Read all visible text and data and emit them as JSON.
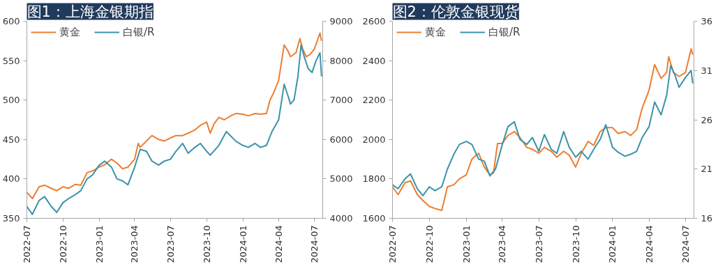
{
  "chart_data": [
    {
      "type": "line",
      "title": "图1：上海金银期指",
      "legend": "top left",
      "grid": false,
      "xlim": [
        "2022-07-01",
        "2024-07-22"
      ],
      "xticks": [
        "2022-07",
        "2022-10",
        "2023-01",
        "2023-04",
        "2023-07",
        "2023-10",
        "2024-01",
        "2024-04",
        "2024-07"
      ],
      "ylim": [
        350,
        600
      ],
      "yticks": [
        350,
        400,
        450,
        500,
        550,
        600
      ],
      "y2lim": [
        4000,
        9000
      ],
      "y2ticks": [
        4000,
        5000,
        6000,
        7000,
        8000,
        9000
      ],
      "series": [
        {
          "name": "黄金",
          "color": "#ed7d31",
          "x": [
            "2022-07-01",
            "2022-07-15",
            "2022-08-01",
            "2022-08-15",
            "2022-09-01",
            "2022-09-15",
            "2022-10-01",
            "2022-10-15",
            "2022-11-01",
            "2022-11-15",
            "2022-12-01",
            "2022-12-15",
            "2023-01-01",
            "2023-01-15",
            "2023-02-01",
            "2023-02-15",
            "2023-03-01",
            "2023-03-15",
            "2023-04-01",
            "2023-04-10",
            "2023-04-15",
            "2023-05-01",
            "2023-05-15",
            "2023-06-01",
            "2023-06-15",
            "2023-07-01",
            "2023-07-15",
            "2023-08-01",
            "2023-08-15",
            "2023-09-01",
            "2023-09-15",
            "2023-10-01",
            "2023-10-10",
            "2023-10-20",
            "2023-11-01",
            "2023-11-15",
            "2023-12-01",
            "2023-12-15",
            "2024-01-01",
            "2024-01-15",
            "2024-02-01",
            "2024-02-15",
            "2024-03-01",
            "2024-03-10",
            "2024-03-20",
            "2024-04-01",
            "2024-04-15",
            "2024-04-25",
            "2024-05-01",
            "2024-05-15",
            "2024-05-25",
            "2024-06-01",
            "2024-06-10",
            "2024-06-20",
            "2024-07-01",
            "2024-07-15",
            "2024-07-19"
          ],
          "values": [
            383,
            375,
            390,
            392,
            388,
            385,
            390,
            388,
            393,
            392,
            408,
            410,
            415,
            418,
            425,
            420,
            413,
            415,
            425,
            445,
            440,
            448,
            455,
            450,
            448,
            452,
            455,
            455,
            458,
            462,
            468,
            472,
            458,
            470,
            478,
            475,
            480,
            483,
            482,
            480,
            483,
            482,
            483,
            500,
            510,
            525,
            570,
            562,
            555,
            560,
            578,
            565,
            555,
            558,
            565,
            585,
            575
          ]
        },
        {
          "name": "白银/R",
          "color": "#3a93a8",
          "axis": "y2",
          "x": [
            "2022-07-01",
            "2022-07-15",
            "2022-08-01",
            "2022-08-15",
            "2022-09-01",
            "2022-09-15",
            "2022-10-01",
            "2022-10-15",
            "2022-11-01",
            "2022-11-15",
            "2022-12-01",
            "2022-12-15",
            "2023-01-01",
            "2023-01-15",
            "2023-02-01",
            "2023-02-15",
            "2023-03-01",
            "2023-03-15",
            "2023-04-01",
            "2023-04-15",
            "2023-05-01",
            "2023-05-15",
            "2023-06-01",
            "2023-06-15",
            "2023-07-01",
            "2023-07-15",
            "2023-08-01",
            "2023-08-15",
            "2023-09-01",
            "2023-09-15",
            "2023-10-01",
            "2023-10-10",
            "2023-11-01",
            "2023-11-20",
            "2023-12-15",
            "2024-01-01",
            "2024-01-15",
            "2024-02-01",
            "2024-02-15",
            "2024-03-01",
            "2024-03-15",
            "2024-04-01",
            "2024-04-15",
            "2024-04-25",
            "2024-05-01",
            "2024-05-10",
            "2024-05-20",
            "2024-05-28",
            "2024-06-05",
            "2024-06-15",
            "2024-06-25",
            "2024-07-05",
            "2024-07-15",
            "2024-07-19"
          ],
          "values": [
            4300,
            4100,
            4450,
            4550,
            4300,
            4150,
            4400,
            4500,
            4600,
            4700,
            5000,
            5100,
            5350,
            5450,
            5300,
            5000,
            4950,
            4850,
            5300,
            5750,
            5700,
            5450,
            5350,
            5450,
            5500,
            5700,
            5900,
            5650,
            5800,
            5900,
            5700,
            5600,
            5850,
            6200,
            5950,
            5850,
            5800,
            5900,
            5800,
            5850,
            6200,
            6500,
            7400,
            7100,
            6900,
            7000,
            7600,
            8400,
            8100,
            7800,
            7700,
            8000,
            8200,
            7600
          ]
        }
      ]
    },
    {
      "type": "line",
      "title": "图2：伦敦金银现货",
      "legend": "top left",
      "grid": false,
      "xlim": [
        "2022-07-01",
        "2024-07-22"
      ],
      "xticks": [
        "2022-07",
        "2022-10",
        "2023-01",
        "2023-04",
        "2023-07",
        "2023-10",
        "2024-01",
        "2024-04",
        "2024-07"
      ],
      "ylim": [
        1600,
        2600
      ],
      "yticks": [
        1600,
        1800,
        2000,
        2200,
        2400,
        2600
      ],
      "y2lim": [
        16,
        36
      ],
      "y2ticks": [
        16,
        21,
        26,
        31,
        36
      ],
      "series": [
        {
          "name": "黄金",
          "color": "#ed7d31",
          "x": [
            "2022-07-01",
            "2022-07-15",
            "2022-08-01",
            "2022-08-15",
            "2022-09-01",
            "2022-09-15",
            "2022-10-01",
            "2022-10-15",
            "2022-11-01",
            "2022-11-15",
            "2022-12-01",
            "2022-12-15",
            "2023-01-01",
            "2023-01-15",
            "2023-02-01",
            "2023-02-15",
            "2023-03-01",
            "2023-03-10",
            "2023-03-20",
            "2023-04-01",
            "2023-04-15",
            "2023-05-01",
            "2023-05-15",
            "2023-06-01",
            "2023-06-15",
            "2023-07-01",
            "2023-07-15",
            "2023-08-01",
            "2023-08-15",
            "2023-09-01",
            "2023-09-15",
            "2023-10-01",
            "2023-10-15",
            "2023-11-01",
            "2023-11-15",
            "2023-12-01",
            "2023-12-15",
            "2024-01-01",
            "2024-01-15",
            "2024-02-01",
            "2024-02-15",
            "2024-03-01",
            "2024-03-15",
            "2024-04-01",
            "2024-04-15",
            "2024-05-01",
            "2024-05-15",
            "2024-05-20",
            "2024-06-01",
            "2024-06-15",
            "2024-07-01",
            "2024-07-15",
            "2024-07-19"
          ],
          "values": [
            1760,
            1720,
            1780,
            1790,
            1720,
            1690,
            1660,
            1650,
            1640,
            1760,
            1770,
            1800,
            1820,
            1900,
            1930,
            1860,
            1820,
            1830,
            1980,
            1980,
            2020,
            2040,
            2010,
            1960,
            1950,
            1930,
            1960,
            1940,
            1910,
            1940,
            1920,
            1860,
            1930,
            1990,
            1970,
            2040,
            2060,
            2060,
            2030,
            2040,
            2020,
            2050,
            2160,
            2250,
            2380,
            2310,
            2340,
            2420,
            2340,
            2320,
            2340,
            2460,
            2430
          ]
        },
        {
          "name": "白银/R",
          "color": "#3a93a8",
          "axis": "y2",
          "x": [
            "2022-07-01",
            "2022-07-15",
            "2022-08-01",
            "2022-08-15",
            "2022-09-01",
            "2022-09-15",
            "2022-10-01",
            "2022-10-15",
            "2022-11-01",
            "2022-11-15",
            "2022-12-01",
            "2022-12-15",
            "2023-01-01",
            "2023-01-15",
            "2023-02-01",
            "2023-02-15",
            "2023-03-01",
            "2023-03-15",
            "2023-04-01",
            "2023-04-15",
            "2023-05-01",
            "2023-05-15",
            "2023-06-01",
            "2023-06-15",
            "2023-07-01",
            "2023-07-15",
            "2023-08-01",
            "2023-08-15",
            "2023-09-01",
            "2023-09-15",
            "2023-10-01",
            "2023-10-15",
            "2023-11-01",
            "2023-11-15",
            "2023-12-01",
            "2023-12-15",
            "2024-01-01",
            "2024-01-15",
            "2024-02-01",
            "2024-02-15",
            "2024-03-01",
            "2024-03-15",
            "2024-04-01",
            "2024-04-15",
            "2024-05-01",
            "2024-05-15",
            "2024-05-25",
            "2024-06-05",
            "2024-06-15",
            "2024-07-01",
            "2024-07-15",
            "2024-07-19"
          ],
          "values": [
            19.4,
            19.0,
            20.0,
            20.5,
            19.0,
            18.3,
            19.2,
            18.8,
            19.2,
            21.0,
            22.5,
            23.5,
            23.8,
            23.5,
            22.0,
            21.8,
            20.3,
            21.0,
            23.5,
            25.3,
            25.8,
            24.0,
            23.5,
            24.2,
            22.8,
            24.5,
            23.0,
            22.6,
            24.8,
            23.2,
            22.2,
            22.8,
            22.0,
            23.0,
            24.0,
            25.5,
            23.2,
            22.7,
            22.3,
            22.5,
            22.8,
            24.2,
            25.3,
            27.8,
            26.5,
            28.5,
            31.5,
            30.5,
            29.3,
            30.3,
            31.0,
            29.7
          ]
        }
      ]
    }
  ]
}
